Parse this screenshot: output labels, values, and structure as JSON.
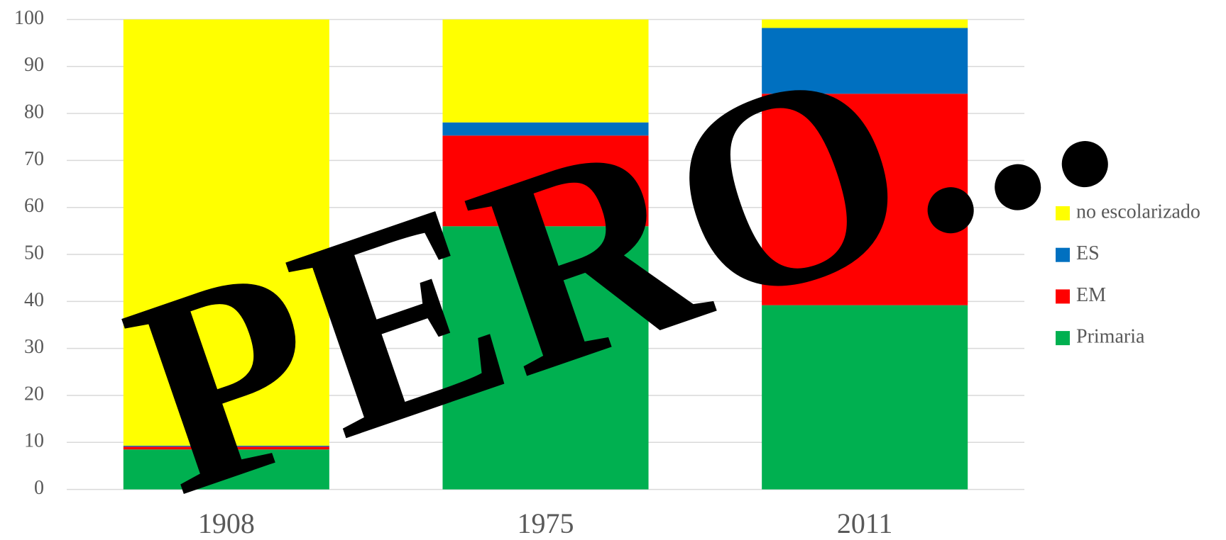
{
  "chart_data": {
    "type": "stacked_bar",
    "categories": [
      "1908",
      "1975",
      "2011"
    ],
    "series": [
      {
        "name": "Primaria",
        "color": "#00b050",
        "values": [
          8.5,
          56,
          39.2
        ]
      },
      {
        "name": "EM",
        "color": "#ff0000",
        "values": [
          0.6,
          19.3,
          45
        ]
      },
      {
        "name": "ES",
        "color": "#0070c0",
        "values": [
          0.2,
          2.8,
          14
        ]
      },
      {
        "name": "no escolarizado",
        "color": "#ffff00",
        "values": [
          90.7,
          21.9,
          1.8
        ]
      }
    ],
    "ylim": [
      0,
      100
    ],
    "yticks": [
      0,
      10,
      20,
      30,
      40,
      50,
      60,
      70,
      80,
      90,
      100
    ],
    "grid": true,
    "legend": "right",
    "annotation": "PERO..."
  }
}
